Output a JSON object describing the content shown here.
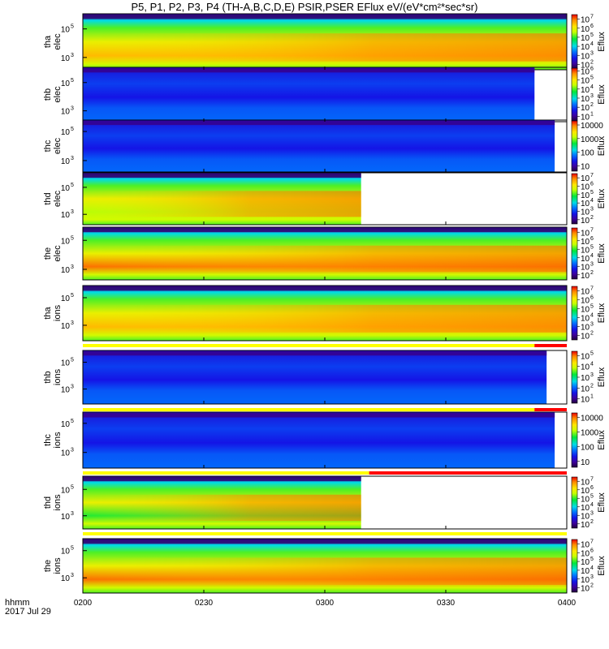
{
  "chart_data": {
    "type": "heatmap",
    "title": "P5, P1, P2, P3, P4 (TH-A,B,C,D,E) PSIR,PSER EFlux eV/(eV*cm²*sec*sr)",
    "x_axis": {
      "ticks": [
        "0200",
        "0230",
        "0300",
        "0330",
        "0400"
      ],
      "minutes": [
        0,
        30,
        60,
        90,
        120
      ],
      "corner_label_1": "hhmm",
      "corner_label_2": "2017 Jul 29"
    },
    "panels": [
      {
        "ylabel_1": "tha",
        "ylabel_2": "elec",
        "species": "elec",
        "yticks": [
          {
            "base": "10",
            "exp": "3",
            "frac": 0.22
          },
          {
            "base": "10",
            "exp": "5",
            "frac": 0.73
          }
        ],
        "cbar_label": "Eflux",
        "cbar_min_exp": 1.5,
        "cbar_max_exp": 7.5,
        "cbar_ticks": [
          {
            "text": "10",
            "exp": "7"
          },
          {
            "text": "10",
            "exp": "6"
          },
          {
            "text": "10",
            "exp": "5"
          },
          {
            "text": "10",
            "exp": "4"
          },
          {
            "text": "10",
            "exp": "3"
          },
          {
            "text": "10",
            "exp": "2"
          }
        ],
        "data_end_min": 120,
        "hot": 0.72,
        "flag": "none"
      },
      {
        "ylabel_1": "thb",
        "ylabel_2": "elec",
        "species": "elec",
        "yticks": [
          {
            "base": "10",
            "exp": "3",
            "frac": 0.2
          },
          {
            "base": "10",
            "exp": "5",
            "frac": 0.72
          }
        ],
        "cbar_label": "Eflux",
        "cbar_min_exp": 0.5,
        "cbar_max_exp": 6.3,
        "cbar_ticks": [
          {
            "text": "10",
            "exp": "6"
          },
          {
            "text": "10",
            "exp": "5"
          },
          {
            "text": "10",
            "exp": "4"
          },
          {
            "text": "10",
            "exp": "3"
          },
          {
            "text": "10",
            "exp": "2"
          },
          {
            "text": "10",
            "exp": "1"
          }
        ],
        "data_end_min": 112,
        "hot": 0.12,
        "flag": "none"
      },
      {
        "ylabel_1": "thc",
        "ylabel_2": "elec",
        "species": "elec",
        "yticks": [
          {
            "base": "10",
            "exp": "3",
            "frac": 0.22
          },
          {
            "base": "10",
            "exp": "5",
            "frac": 0.78
          }
        ],
        "cbar_label": "Eflux",
        "cbar_min_exp": 0.6,
        "cbar_max_exp": 4.3,
        "cbar_ticks": [
          {
            "text": "10000",
            "exp": ""
          },
          {
            "text": "1000",
            "exp": ""
          },
          {
            "text": "100",
            "exp": ""
          },
          {
            "text": "10",
            "exp": ""
          }
        ],
        "data_end_min": 117,
        "hot": 0.05,
        "flag": "none"
      },
      {
        "ylabel_1": "thd",
        "ylabel_2": "elec",
        "species": "elec",
        "yticks": [
          {
            "base": "10",
            "exp": "3",
            "frac": 0.2
          },
          {
            "base": "10",
            "exp": "5",
            "frac": 0.72
          }
        ],
        "cbar_label": "Eflux",
        "cbar_min_exp": 1.5,
        "cbar_max_exp": 7.5,
        "cbar_ticks": [
          {
            "text": "10",
            "exp": "7"
          },
          {
            "text": "10",
            "exp": "6"
          },
          {
            "text": "10",
            "exp": "5"
          },
          {
            "text": "10",
            "exp": "4"
          },
          {
            "text": "10",
            "exp": "3"
          },
          {
            "text": "10",
            "exp": "2"
          }
        ],
        "data_end_min": 69,
        "hot": 0.55,
        "flag": "none"
      },
      {
        "ylabel_1": "the",
        "ylabel_2": "elec",
        "species": "elec",
        "yticks": [
          {
            "base": "10",
            "exp": "3",
            "frac": 0.2
          },
          {
            "base": "10",
            "exp": "5",
            "frac": 0.75
          }
        ],
        "cbar_label": "Eflux",
        "cbar_min_exp": 1.5,
        "cbar_max_exp": 7.5,
        "cbar_ticks": [
          {
            "text": "10",
            "exp": "7"
          },
          {
            "text": "10",
            "exp": "6"
          },
          {
            "text": "10",
            "exp": "5"
          },
          {
            "text": "10",
            "exp": "4"
          },
          {
            "text": "10",
            "exp": "3"
          },
          {
            "text": "10",
            "exp": "2"
          }
        ],
        "data_end_min": 120,
        "hot": 0.8,
        "flag": "none"
      },
      {
        "ylabel_1": "tha",
        "ylabel_2": "ions",
        "species": "ions",
        "yticks": [
          {
            "base": "10",
            "exp": "3",
            "frac": 0.28
          },
          {
            "base": "10",
            "exp": "5",
            "frac": 0.78
          }
        ],
        "cbar_label": "Eflux",
        "cbar_min_exp": 1.5,
        "cbar_max_exp": 7.5,
        "cbar_ticks": [
          {
            "text": "10",
            "exp": "7"
          },
          {
            "text": "10",
            "exp": "6"
          },
          {
            "text": "10",
            "exp": "5"
          },
          {
            "text": "10",
            "exp": "4"
          },
          {
            "text": "10",
            "exp": "3"
          },
          {
            "text": "10",
            "exp": "2"
          }
        ],
        "data_end_min": 120,
        "hot": 0.72,
        "flag": "yellow-red",
        "flag_red_from_min": 112
      },
      {
        "ylabel_1": "thb",
        "ylabel_2": "ions",
        "species": "ions",
        "yticks": [
          {
            "base": "10",
            "exp": "3",
            "frac": 0.28
          },
          {
            "base": "10",
            "exp": "5",
            "frac": 0.78
          }
        ],
        "cbar_label": "Eflux",
        "cbar_min_exp": 0.6,
        "cbar_max_exp": 5.4,
        "cbar_ticks": [
          {
            "text": "10",
            "exp": "5"
          },
          {
            "text": "10",
            "exp": "4"
          },
          {
            "text": "10",
            "exp": "3"
          },
          {
            "text": "10",
            "exp": "2"
          },
          {
            "text": "10",
            "exp": "1"
          }
        ],
        "data_end_min": 115,
        "hot": 0.1,
        "flag": "yellow-red",
        "flag_red_from_min": 112
      },
      {
        "ylabel_1": "thc",
        "ylabel_2": "ions",
        "species": "ions",
        "yticks": [
          {
            "base": "10",
            "exp": "3",
            "frac": 0.28
          },
          {
            "base": "10",
            "exp": "5",
            "frac": 0.8
          }
        ],
        "cbar_label": "Eflux",
        "cbar_min_exp": 0.6,
        "cbar_max_exp": 4.3,
        "cbar_ticks": [
          {
            "text": "10000",
            "exp": ""
          },
          {
            "text": "1000",
            "exp": ""
          },
          {
            "text": "100",
            "exp": ""
          },
          {
            "text": "10",
            "exp": ""
          }
        ],
        "data_end_min": 117,
        "hot": 0.05,
        "flag": "yellow-red",
        "flag_red_from_min": 71
      },
      {
        "ylabel_1": "thd",
        "ylabel_2": "ions",
        "species": "ions",
        "yticks": [
          {
            "base": "10",
            "exp": "3",
            "frac": 0.25
          },
          {
            "base": "10",
            "exp": "5",
            "frac": 0.75
          }
        ],
        "cbar_label": "Eflux",
        "cbar_min_exp": 1.5,
        "cbar_max_exp": 7.5,
        "cbar_ticks": [
          {
            "text": "10",
            "exp": "7"
          },
          {
            "text": "10",
            "exp": "6"
          },
          {
            "text": "10",
            "exp": "5"
          },
          {
            "text": "10",
            "exp": "4"
          },
          {
            "text": "10",
            "exp": "3"
          },
          {
            "text": "10",
            "exp": "2"
          }
        ],
        "data_end_min": 69,
        "hot": 0.45,
        "flag": "yellow"
      },
      {
        "ylabel_1": "the",
        "ylabel_2": "ions",
        "species": "ions",
        "yticks": [
          {
            "base": "10",
            "exp": "3",
            "frac": 0.28
          },
          {
            "base": "10",
            "exp": "5",
            "frac": 0.78
          }
        ],
        "cbar_label": "Eflux",
        "cbar_min_exp": 1.5,
        "cbar_max_exp": 7.5,
        "cbar_ticks": [
          {
            "text": "10",
            "exp": "7"
          },
          {
            "text": "10",
            "exp": "6"
          },
          {
            "text": "10",
            "exp": "5"
          },
          {
            "text": "10",
            "exp": "4"
          },
          {
            "text": "10",
            "exp": "3"
          },
          {
            "text": "10",
            "exp": "2"
          }
        ],
        "data_end_min": 120,
        "hot": 0.8,
        "flag": "none"
      }
    ]
  }
}
